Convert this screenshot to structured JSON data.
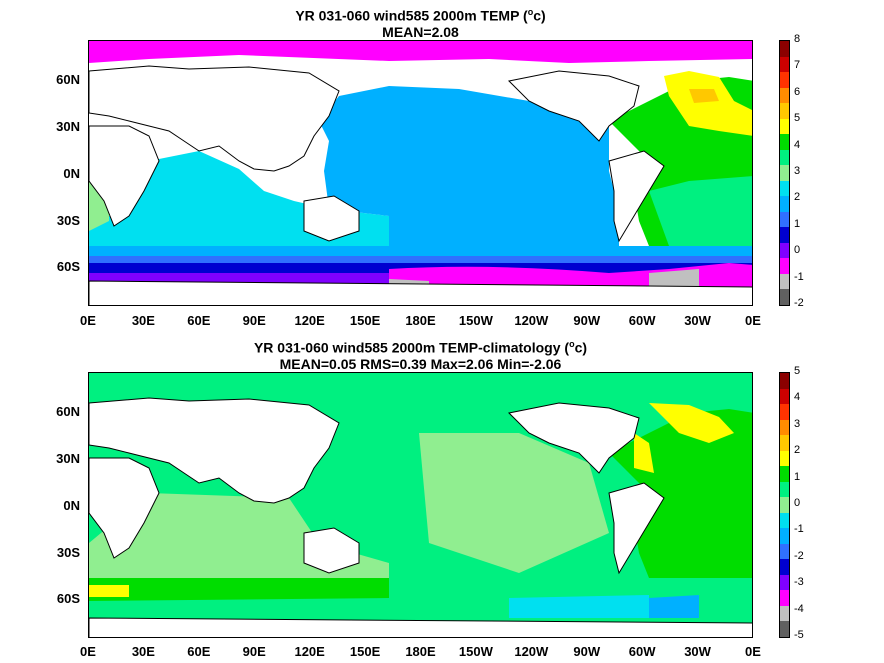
{
  "panel_top": {
    "title_line1": "YR 031-060 wind585 2000m TEMP (",
    "title_sup": "o",
    "title_line1_end": "c)",
    "title_line2": "MEAN=2.08",
    "colorbar_labels": [
      "8",
      "7",
      "6",
      "5",
      "4",
      "3",
      "2",
      "1",
      "0",
      "-1",
      "-2"
    ],
    "colorbar_colors": [
      "#8b0000",
      "#cc0000",
      "#ff3300",
      "#ff8c00",
      "#ffc800",
      "#ffff00",
      "#00dd00",
      "#00f080",
      "#90ee90",
      "#00e0f0",
      "#00b0ff",
      "#3070ff",
      "#0000d0",
      "#8000ff",
      "#ff00ff",
      "#c0c0c0",
      "#606060"
    ]
  },
  "panel_bottom": {
    "title_line1": "YR 031-060 wind585 2000m TEMP-climatology (",
    "title_sup": "o",
    "title_line1_end": "c)",
    "title_line2": "MEAN=0.05   RMS=0.39   Max=2.06   Min=-2.06",
    "colorbar_labels": [
      "5",
      "4",
      "3",
      "2",
      "1",
      "0",
      "-1",
      "-2",
      "-3",
      "-4",
      "-5"
    ],
    "colorbar_colors": [
      "#8b0000",
      "#cc0000",
      "#ff3300",
      "#ff8c00",
      "#ffc800",
      "#ffff00",
      "#00dd00",
      "#00f080",
      "#90ee90",
      "#00e0f0",
      "#00b0ff",
      "#3070ff",
      "#0000d0",
      "#8000ff",
      "#ff00ff",
      "#c0c0c0",
      "#606060"
    ]
  },
  "axes": {
    "lat_labels": [
      "60N",
      "30N",
      "0N",
      "30S",
      "60S"
    ],
    "lon_labels": [
      "0E",
      "30E",
      "60E",
      "90E",
      "120E",
      "150E",
      "180E",
      "150W",
      "120W",
      "90W",
      "60W",
      "30W",
      "0E"
    ]
  }
}
